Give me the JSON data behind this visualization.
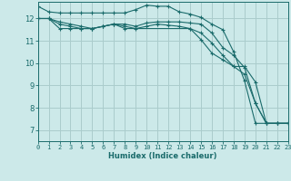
{
  "background_color": "#cce9e9",
  "grid_color": "#aacccc",
  "line_color": "#1a6b6b",
  "xlabel": "Humidex (Indice chaleur)",
  "xlim": [
    0,
    23
  ],
  "ylim": [
    6.5,
    12.75
  ],
  "yticks": [
    7,
    8,
    9,
    10,
    11,
    12
  ],
  "xticks": [
    0,
    1,
    2,
    3,
    4,
    5,
    6,
    7,
    8,
    9,
    10,
    11,
    12,
    13,
    14,
    15,
    16,
    17,
    18,
    19,
    20,
    21,
    22,
    23
  ],
  "series": [
    {
      "x": [
        0,
        1,
        2,
        3,
        4,
        5,
        6,
        7,
        8,
        9,
        10,
        11,
        12,
        13,
        14,
        15,
        16,
        17,
        18,
        19,
        20,
        21,
        22,
        23
      ],
      "y": [
        12.55,
        12.3,
        12.25,
        12.25,
        12.25,
        12.25,
        12.25,
        12.25,
        12.25,
        12.4,
        12.6,
        12.55,
        12.55,
        12.3,
        12.2,
        12.05,
        11.75,
        11.5,
        10.5,
        9.2,
        7.3,
        7.3,
        7.3,
        7.3
      ]
    },
    {
      "x": [
        0,
        1,
        2,
        3,
        4,
        5,
        6,
        7,
        8,
        9,
        10,
        11,
        12,
        13,
        14,
        15,
        16,
        17,
        18,
        19,
        20,
        21,
        22,
        23
      ],
      "y": [
        12.0,
        12.0,
        11.85,
        11.75,
        11.65,
        11.55,
        11.65,
        11.75,
        11.75,
        11.65,
        11.8,
        11.85,
        11.85,
        11.85,
        11.8,
        11.75,
        11.35,
        10.7,
        10.35,
        9.8,
        8.2,
        7.3,
        7.3,
        7.3
      ]
    },
    {
      "x": [
        0,
        1,
        2,
        3,
        4,
        5,
        6,
        7,
        8,
        9,
        10,
        11,
        12,
        13,
        14,
        15,
        16,
        17,
        18,
        19,
        20,
        21,
        22,
        23
      ],
      "y": [
        12.0,
        12.0,
        11.75,
        11.65,
        11.55,
        11.55,
        11.65,
        11.75,
        11.65,
        11.55,
        11.65,
        11.75,
        11.7,
        11.65,
        11.55,
        11.35,
        10.9,
        10.35,
        9.85,
        9.5,
        8.2,
        7.3,
        7.3,
        7.3
      ]
    },
    {
      "x": [
        0,
        1,
        2,
        3,
        4,
        5,
        6,
        7,
        8,
        14,
        15,
        16,
        17,
        18,
        19,
        20,
        21,
        22,
        23
      ],
      "y": [
        12.0,
        12.0,
        11.55,
        11.55,
        11.55,
        11.55,
        11.65,
        11.75,
        11.55,
        11.55,
        11.05,
        10.45,
        10.15,
        9.85,
        9.85,
        9.15,
        7.3,
        7.3,
        7.3
      ]
    }
  ]
}
